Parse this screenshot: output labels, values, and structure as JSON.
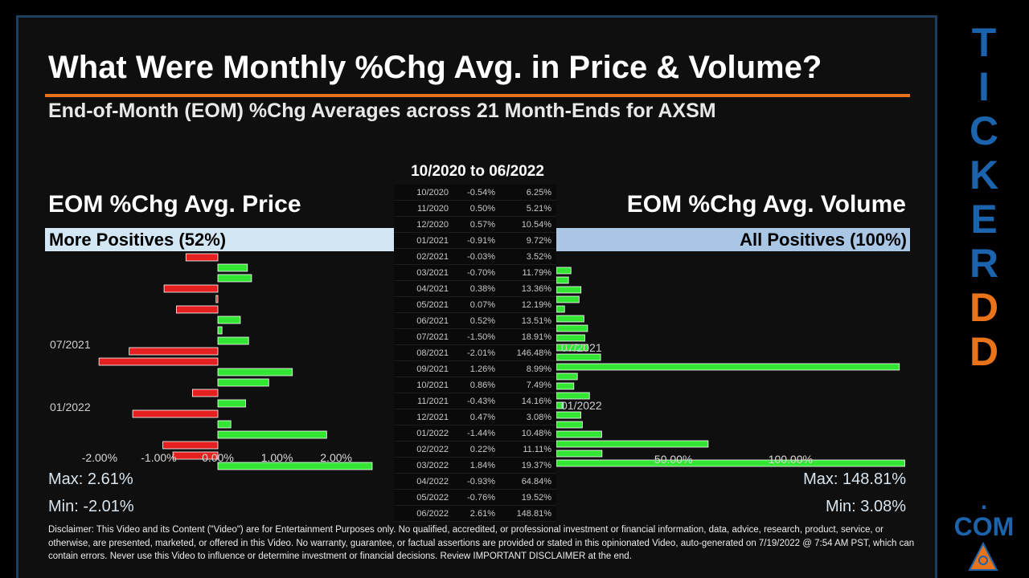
{
  "header": {
    "title": "What Were Monthly %Chg Avg. in Price & Volume?",
    "subtitle": "End-of-Month (EOM) %Chg Averages across 21 Month-Ends for AXSM",
    "date_range": "10/2020 to 06/2022"
  },
  "price": {
    "title": "EOM %Chg Avg. Price",
    "banner": "More Positives (52%)",
    "max": "Max: 2.61%",
    "min": "Min: -2.01%"
  },
  "volume": {
    "title": "EOM %Chg Avg. Volume",
    "banner": "All Positives (100%)",
    "max": "Max: 148.81%",
    "min": "Min: 3.08%"
  },
  "table": [
    {
      "date": "10/2020",
      "price": "-0.54%",
      "volume": "6.25%"
    },
    {
      "date": "11/2020",
      "price": "0.50%",
      "volume": "5.21%"
    },
    {
      "date": "12/2020",
      "price": "0.57%",
      "volume": "10.54%"
    },
    {
      "date": "01/2021",
      "price": "-0.91%",
      "volume": "9.72%"
    },
    {
      "date": "02/2021",
      "price": "-0.03%",
      "volume": "3.52%"
    },
    {
      "date": "03/2021",
      "price": "-0.70%",
      "volume": "11.79%"
    },
    {
      "date": "04/2021",
      "price": "0.38%",
      "volume": "13.36%"
    },
    {
      "date": "05/2021",
      "price": "0.07%",
      "volume": "12.19%"
    },
    {
      "date": "06/2021",
      "price": "0.52%",
      "volume": "13.51%"
    },
    {
      "date": "07/2021",
      "price": "-1.50%",
      "volume": "18.91%"
    },
    {
      "date": "08/2021",
      "price": "-2.01%",
      "volume": "146.48%"
    },
    {
      "date": "09/2021",
      "price": "1.26%",
      "volume": "8.99%"
    },
    {
      "date": "10/2021",
      "price": "0.86%",
      "volume": "7.49%"
    },
    {
      "date": "11/2021",
      "price": "-0.43%",
      "volume": "14.16%"
    },
    {
      "date": "12/2021",
      "price": "0.47%",
      "volume": "3.08%"
    },
    {
      "date": "01/2022",
      "price": "-1.44%",
      "volume": "10.48%"
    },
    {
      "date": "02/2022",
      "price": "0.22%",
      "volume": "11.11%"
    },
    {
      "date": "03/2022",
      "price": "1.84%",
      "volume": "19.37%"
    },
    {
      "date": "04/2022",
      "price": "-0.93%",
      "volume": "64.84%"
    },
    {
      "date": "05/2022",
      "price": "-0.76%",
      "volume": "19.52%"
    },
    {
      "date": "06/2022",
      "price": "2.61%",
      "volume": "148.81%"
    }
  ],
  "chart_data": [
    {
      "type": "bar",
      "orientation": "horizontal",
      "categories": [
        "10/2020",
        "11/2020",
        "12/2020",
        "01/2021",
        "02/2021",
        "03/2021",
        "04/2021",
        "05/2021",
        "06/2021",
        "07/2021",
        "08/2021",
        "09/2021",
        "10/2021",
        "11/2021",
        "12/2021",
        "01/2022",
        "02/2022",
        "03/2022",
        "04/2022",
        "05/2022",
        "06/2022"
      ],
      "values": [
        -0.54,
        0.5,
        0.57,
        -0.91,
        -0.03,
        -0.7,
        0.38,
        0.07,
        0.52,
        -1.5,
        -2.01,
        1.26,
        0.86,
        -0.43,
        0.47,
        -1.44,
        0.22,
        1.84,
        -0.93,
        -0.76,
        2.61
      ],
      "xlim": [
        -2.95,
        2.95
      ],
      "ticks": [
        -2,
        -1,
        0,
        1,
        2
      ],
      "tick_labels": [
        "-2.00%",
        "-1.00%",
        "0.00%",
        "1.00%",
        "2.00%"
      ],
      "category_labels_shown": [
        "07/2021",
        "01/2022"
      ],
      "colors": {
        "positive": "#33e633",
        "negative": "#e62020"
      }
    },
    {
      "type": "bar",
      "orientation": "horizontal",
      "categories": [
        "10/2020",
        "11/2020",
        "12/2020",
        "01/2021",
        "02/2021",
        "03/2021",
        "04/2021",
        "05/2021",
        "06/2021",
        "07/2021",
        "08/2021",
        "09/2021",
        "10/2021",
        "11/2021",
        "12/2021",
        "01/2022",
        "02/2022",
        "03/2022",
        "04/2022",
        "05/2022",
        "06/2022"
      ],
      "values": [
        6.25,
        5.21,
        10.54,
        9.72,
        3.52,
        11.79,
        13.36,
        12.19,
        13.51,
        18.91,
        146.48,
        8.99,
        7.49,
        14.16,
        3.08,
        10.48,
        11.11,
        19.37,
        64.84,
        19.52,
        148.81
      ],
      "xlim": [
        0,
        150
      ],
      "ticks": [
        50,
        100
      ],
      "tick_labels": [
        "50.00%",
        "100.00%"
      ],
      "category_labels_shown": [
        "07/2021",
        "01/2022"
      ],
      "colors": {
        "positive": "#33e633"
      }
    }
  ],
  "disclaimer": "Disclaimer: This Video and its Content (\"Video\") are for Entertainment Purposes only. No qualified, accredited, or professional investment or financial information, data, advice, research, product, service, or otherwise, are presented, marketed, or offered in this Video. No warranty, guarantee, or factual assertions are provided or stated in this opinionated Video, auto-generated on 7/19/2022 @ 7:54 AM PST, which can contain errors. Never use this Video to influence or determine investment or financial decisions. Review IMPORTANT DISCLAIMER at the end.",
  "brand": {
    "letters": [
      "T",
      "I",
      "C",
      "K",
      "E",
      "R",
      "D",
      "D"
    ],
    "colors": [
      "#1b64ad",
      "#1b64ad",
      "#1b64ad",
      "#1b64ad",
      "#1b64ad",
      "#1b64ad",
      "#e8731a",
      "#e8731a"
    ],
    "dot": ".",
    "suffix": "COM"
  }
}
